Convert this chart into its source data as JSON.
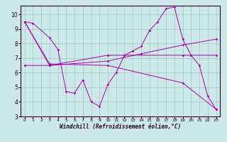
{
  "xlabel": "Windchill (Refroidissement éolien,°C)",
  "bg_color": "#cce8e8",
  "line_color": "#aa00aa",
  "xlim": [
    -0.5,
    23.5
  ],
  "ylim": [
    3,
    10.6
  ],
  "xticks": [
    0,
    1,
    2,
    3,
    4,
    5,
    6,
    7,
    8,
    9,
    10,
    11,
    12,
    13,
    14,
    15,
    16,
    17,
    18,
    19,
    20,
    21,
    22,
    23
  ],
  "yticks": [
    3,
    4,
    5,
    6,
    7,
    8,
    9,
    10
  ],
  "series": [
    {
      "x": [
        0,
        1,
        3,
        4,
        5,
        6,
        7,
        8,
        9,
        10,
        11,
        12,
        13,
        14,
        15,
        16,
        17,
        18,
        19,
        20,
        21,
        22,
        23
      ],
      "y": [
        9.5,
        9.4,
        8.4,
        7.6,
        4.7,
        4.6,
        5.5,
        4.0,
        3.7,
        5.2,
        6.0,
        7.2,
        7.5,
        7.8,
        8.9,
        9.5,
        10.4,
        10.5,
        8.3,
        7.2,
        6.5,
        4.4,
        3.5
      ]
    },
    {
      "x": [
        0,
        3,
        10,
        14,
        19,
        23
      ],
      "y": [
        6.5,
        6.5,
        6.8,
        7.3,
        7.9,
        8.3
      ]
    },
    {
      "x": [
        0,
        3,
        10,
        19,
        23
      ],
      "y": [
        9.5,
        6.6,
        6.5,
        5.3,
        3.5
      ]
    },
    {
      "x": [
        0,
        3,
        10,
        19,
        23
      ],
      "y": [
        9.5,
        6.5,
        7.2,
        7.2,
        7.2
      ]
    }
  ]
}
